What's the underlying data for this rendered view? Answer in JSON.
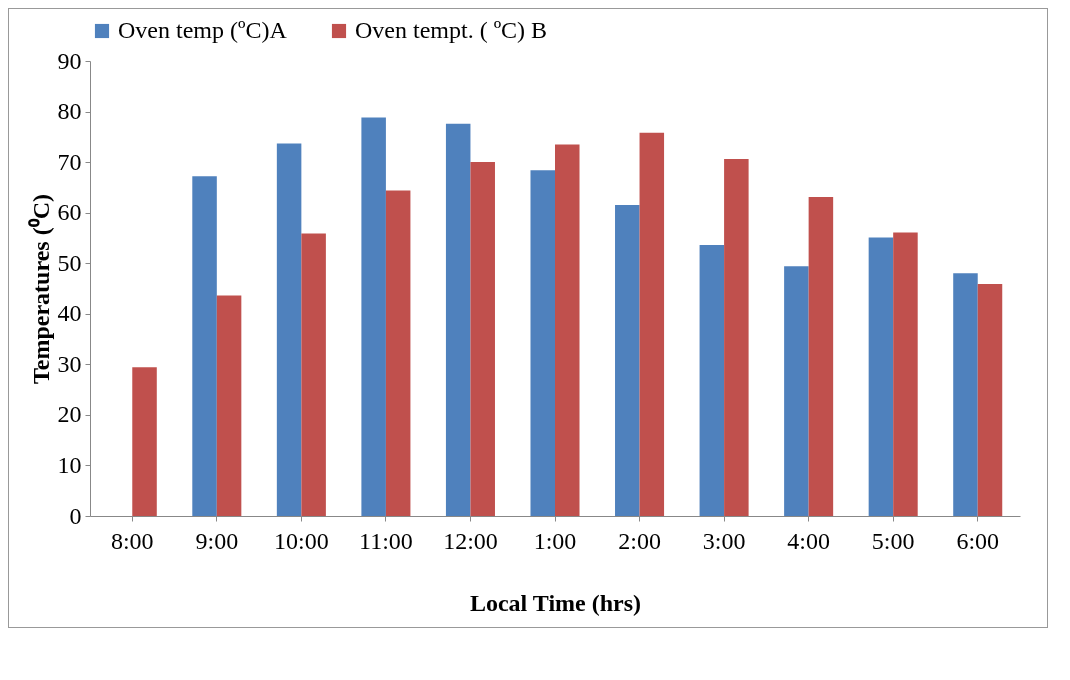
{
  "chart_data": {
    "type": "bar",
    "xlabel": "Local Time (hrs)",
    "ylabel": "Temperatures (⁰C)",
    "categories": [
      "8:00",
      "9:00",
      "10:00",
      "11:00",
      "12:00",
      "1:00",
      "2:00",
      "3:00",
      "4:00",
      "5:00",
      "6:00"
    ],
    "series": [
      {
        "name": "Oven temp (ºC)A",
        "color": "#4f81bd",
        "values": [
          null,
          67.2,
          73.7,
          78.8,
          77.6,
          68.4,
          61.5,
          53.6,
          49.4,
          55.1,
          48.0
        ]
      },
      {
        "name": "Oven tempt. ( ºC) B",
        "color": "#c0504d",
        "values": [
          29.4,
          43.6,
          55.9,
          64.4,
          70.0,
          73.5,
          75.8,
          70.6,
          63.1,
          56.1,
          45.9
        ]
      }
    ],
    "ylim": [
      0,
      90
    ],
    "yticks": [
      0,
      10,
      20,
      30,
      40,
      50,
      60,
      70,
      80,
      90
    ],
    "grid": false,
    "legend": "top"
  }
}
